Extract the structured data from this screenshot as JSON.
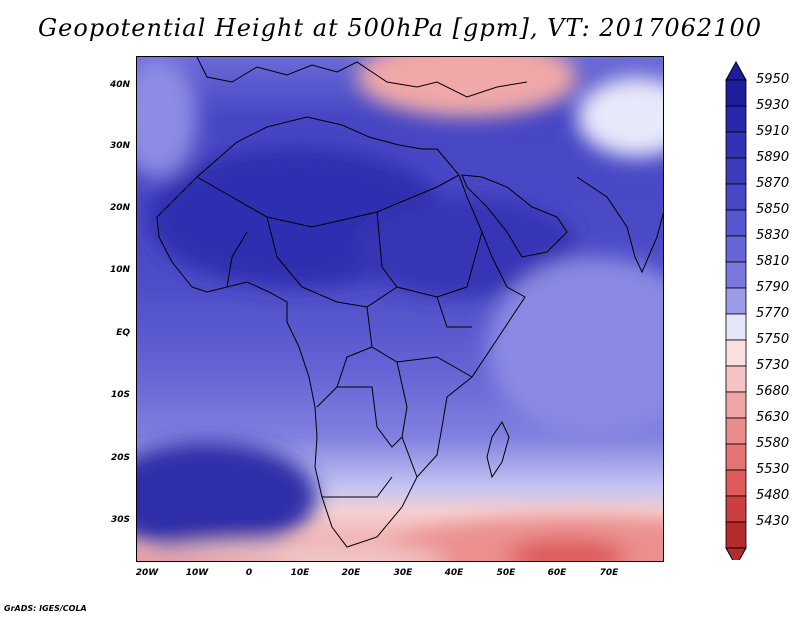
{
  "title": "Geopotential Height at 500hPa [gpm], VT: 2017062100",
  "footer": "GrADS: IGES/COLA",
  "map": {
    "lon_range": [
      -25,
      80
    ],
    "lat_range": [
      -38,
      45
    ],
    "lat_ticks": [
      "40N",
      "30N",
      "20N",
      "10N",
      "EQ",
      "10S",
      "20S",
      "30S"
    ],
    "lon_ticks": [
      "20W",
      "10W",
      "0",
      "10E",
      "20E",
      "30E",
      "40E",
      "50E",
      "60E",
      "70E"
    ]
  },
  "colorbar": {
    "levels": [
      "5950",
      "5930",
      "5910",
      "5890",
      "5870",
      "5850",
      "5830",
      "5810",
      "5790",
      "5770",
      "5750",
      "5730",
      "5680",
      "5630",
      "5580",
      "5530",
      "5480",
      "5430"
    ],
    "colors": [
      "#1e1e9c",
      "#2727a8",
      "#3232b4",
      "#3c3cbd",
      "#4848c6",
      "#5656cf",
      "#6666d8",
      "#7878df",
      "#9b9be8",
      "#e6e6fb",
      "#fbe0e0",
      "#f5c3c3",
      "#f0a6a6",
      "#ea8c8c",
      "#e37474",
      "#dc5a5a",
      "#cc3f3f",
      "#b52a2a"
    ]
  }
}
